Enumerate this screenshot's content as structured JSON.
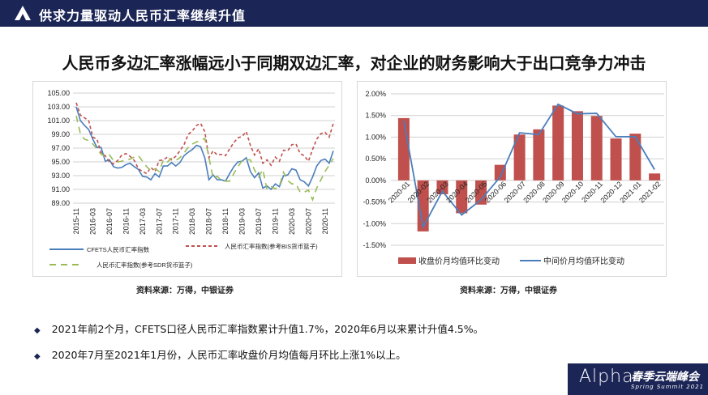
{
  "header": {
    "title": "供求力量驱动人民币汇率继续升值",
    "logo_icon": "alpha-triangle-icon"
  },
  "main_title": "人民币多边汇率涨幅远小于同期双边汇率，对企业的财务影响大于出口竞争力冲击",
  "sources": [
    "资料来源：万得，中银证券",
    "资料来源：万得，中银证券"
  ],
  "bullets": [
    "2021年前2个月，CFETS口径人民币汇率指数累计升值1.7%，2020年6月以来累计升值4.5%。",
    "2020年7月至2021年1月份，人民币汇率收盘价月均值每月环比上涨1%以上。"
  ],
  "footer": {
    "brand": "Alpha",
    "event": "春季云端峰会",
    "subtitle": "Spring Summit 2021"
  },
  "chart_data": [
    {
      "type": "line",
      "ylim": [
        89,
        105
      ],
      "yticks": [
        "105.00",
        "103.00",
        "101.00",
        "99.00",
        "97.00",
        "95.00",
        "93.00",
        "91.00",
        "89.00"
      ],
      "xticks": [
        "2015-11",
        "2016-03",
        "2016-07",
        "2016-11",
        "2017-03",
        "2017-07",
        "2017-11",
        "2018-03",
        "2018-07",
        "2018-11",
        "2019-03",
        "2019-07",
        "2019-11",
        "2020-03",
        "2020-07",
        "2020-11"
      ],
      "x_start": "2015-11",
      "grid": true,
      "legend_placement": "bottom",
      "series": [
        {
          "name": "CFETS人民币汇率指数",
          "color": "#4a7ebb",
          "style": "solid",
          "values": [
            103.0,
            101.0,
            100.3,
            99.7,
            98.3,
            97.1,
            97.1,
            95.1,
            95.3,
            94.3,
            94.1,
            94.2,
            94.6,
            94.8,
            94.3,
            93.9,
            92.9,
            92.8,
            92.4,
            93.3,
            92.8,
            94.4,
            94.4,
            94.9,
            94.4,
            94.9,
            95.9,
            96.4,
            96.8,
            97.4,
            97.2,
            95.6,
            92.4,
            93.1,
            92.4,
            92.4,
            92.2,
            93.3,
            94.3,
            95.0,
            95.1,
            95.6,
            93.6,
            92.7,
            93.4,
            91.2,
            91.5,
            91.0,
            91.8,
            91.4,
            93.0,
            93.1,
            94.0,
            93.8,
            92.4,
            92.1,
            91.5,
            92.8,
            94.4,
            95.2,
            95.4,
            94.8,
            96.6
          ]
        },
        {
          "name": "人民币汇率指数(参考BIS货币篮子)",
          "color": "#c0504d",
          "style": "dashed",
          "values": [
            103.6,
            101.8,
            101.4,
            101.0,
            98.6,
            98.3,
            96.3,
            95.9,
            95.0,
            94.7,
            95.2,
            96.0,
            96.2,
            95.8,
            95.2,
            94.0,
            93.6,
            93.3,
            94.2,
            93.6,
            95.2,
            95.3,
            95.7,
            95.3,
            95.8,
            96.6,
            97.5,
            99.0,
            99.5,
            100.3,
            100.6,
            99.4,
            95.6,
            96.6,
            96.0,
            96.1,
            95.9,
            96.9,
            97.8,
            98.5,
            98.7,
            99.4,
            97.4,
            96.0,
            96.9,
            94.8,
            95.3,
            94.5,
            95.7,
            95.1,
            96.7,
            96.6,
            97.5,
            97.6,
            96.2,
            95.9,
            95.1,
            96.8,
            98.3,
            99.1,
            99.3,
            98.6,
            100.6
          ]
        },
        {
          "name": "人民币汇率指数(参考SDR货币篮子)",
          "color": "#9bbb59",
          "style": "longdash",
          "values": [
            101.7,
            99.1,
            98.3,
            98.1,
            97.6,
            96.9,
            96.1,
            95.8,
            96.0,
            95.2,
            95.0,
            95.1,
            95.3,
            95.4,
            95.7,
            95.9,
            95.1,
            94.3,
            93.7,
            94.0,
            93.6,
            95.3,
            95.0,
            95.5,
            95.2,
            95.6,
            96.3,
            97.1,
            97.6,
            97.9,
            98.1,
            98.4,
            95.7,
            92.6,
            92.9,
            92.3,
            92.2,
            92.2,
            93.3,
            94.3,
            95.2,
            95.3,
            95.3,
            93.8,
            92.8,
            93.9,
            91.0,
            91.4,
            91.1,
            91.5,
            93.5,
            92.3,
            91.8,
            91.8,
            90.6,
            90.6,
            90.9,
            89.5,
            91.2,
            92.4,
            93.6,
            94.5,
            95.5
          ]
        }
      ]
    },
    {
      "type": "bar",
      "ylim": [
        -1.5,
        2.0
      ],
      "yticks": [
        "2.00%",
        "1.50%",
        "1.00%",
        "0.50%",
        "0.00%",
        "-0.50%",
        "-1.00%",
        "-1.50%"
      ],
      "categories": [
        "2020-01",
        "2020-02",
        "2020-03",
        "2020-04",
        "2020-05",
        "2020-06",
        "2020-07",
        "2020-08",
        "2020-09",
        "2020-10",
        "2020-11",
        "2020-12",
        "2021-01",
        "2021-02"
      ],
      "grid": true,
      "legend_placement": "bottom",
      "series": [
        {
          "name": "收盘价月均值环比变动",
          "type": "bar",
          "color": "#c0504d",
          "values": [
            1.44,
            -1.18,
            -0.32,
            -0.76,
            -0.56,
            0.36,
            1.06,
            1.18,
            1.73,
            1.6,
            1.49,
            0.97,
            1.08,
            0.16
          ]
        },
        {
          "name": "中间价月均值环比变动",
          "type": "line",
          "color": "#4a7ebb",
          "values": [
            1.38,
            -1.08,
            -0.25,
            -0.8,
            -0.45,
            0.08,
            1.1,
            1.06,
            1.76,
            1.54,
            1.55,
            1.01,
            1.01,
            0.25
          ]
        }
      ]
    }
  ]
}
